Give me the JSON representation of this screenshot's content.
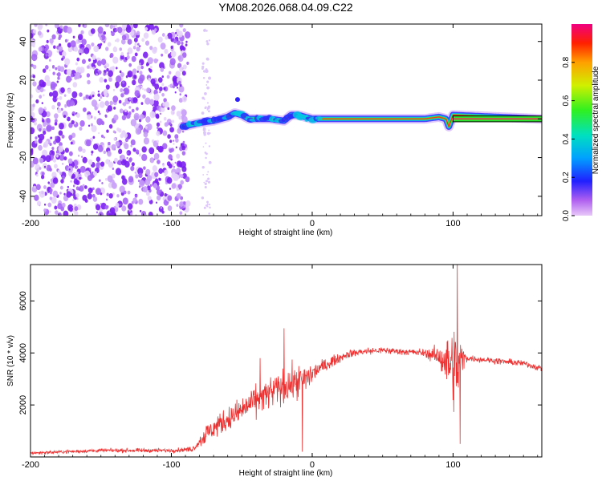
{
  "title": "YM08.2026.068.04.09.C22",
  "colors": {
    "snr_line": "#ee3030",
    "axis": "#000000",
    "noise_purple": "#7b2ff7",
    "band_outline": "#000000"
  },
  "chart_data": [
    {
      "type": "heatmap",
      "name": "spectrogram",
      "xlabel": "Height of straight line (km)",
      "ylabel": "Frequency (Hz)",
      "xlim": [
        -200,
        163
      ],
      "ylim": [
        -50,
        49
      ],
      "xticks": [
        -200,
        -100,
        0,
        100
      ],
      "xtick_labels": [
        "-200",
        "-100",
        "0",
        "100"
      ],
      "yticks": [
        -40,
        -20,
        0,
        20,
        40
      ],
      "ytick_labels": [
        "-40",
        "-20",
        "0",
        "20",
        "40"
      ],
      "colorbar": {
        "label": "Normalized spectral amplitude",
        "range": [
          0,
          1
        ],
        "ticks": [
          0.0,
          0.2,
          0.4,
          0.6,
          0.8
        ],
        "tick_labels": [
          "0.0",
          "0.2",
          "0.4",
          "0.6",
          "0.8"
        ]
      },
      "noise_region_x": [
        -200,
        -88
      ],
      "signal_track": {
        "x": [
          -92,
          -80,
          -70,
          -60,
          -55,
          -50,
          -45,
          -30,
          -20,
          -15,
          -10,
          -5,
          0,
          10,
          20,
          40,
          60,
          80,
          90,
          95,
          97,
          100,
          163
        ],
        "freq": [
          -4,
          -2,
          -1,
          1,
          3,
          2,
          0,
          0,
          -1,
          2,
          2,
          1,
          0,
          0,
          0,
          0,
          0,
          0,
          1,
          0,
          -4,
          2,
          0
        ]
      },
      "strong_band_x": [
        100,
        163
      ]
    },
    {
      "type": "line",
      "name": "snr",
      "xlabel": "Height of straight line (km)",
      "ylabel": "SNR (10 * v/v)",
      "xlim": [
        -200,
        163
      ],
      "ylim": [
        0,
        7400
      ],
      "xticks": [
        -200,
        -100,
        0,
        100
      ],
      "xtick_labels": [
        "-200",
        "-100",
        "0",
        "100"
      ],
      "yticks": [
        2000,
        4000,
        6000
      ],
      "ytick_labels": [
        "2000",
        "4000",
        "6000"
      ],
      "series": [
        {
          "name": "SNR",
          "x": [
            -200,
            -150,
            -100,
            -85,
            -75,
            -65,
            -55,
            -45,
            -35,
            -25,
            -15,
            -5,
            5,
            15,
            25,
            35,
            50,
            65,
            80,
            90,
            97,
            103,
            107,
            110,
            130,
            150,
            163
          ],
          "values": [
            150,
            250,
            250,
            300,
            900,
            1300,
            1600,
            2000,
            2300,
            2600,
            2800,
            3000,
            3400,
            3700,
            3950,
            4050,
            4100,
            4050,
            4000,
            3850,
            3600,
            3300,
            3800,
            3800,
            3700,
            3600,
            3400
          ],
          "noise_amp": [
            60,
            70,
            80,
            100,
            400,
            450,
            500,
            550,
            600,
            650,
            650,
            600,
            300,
            200,
            150,
            150,
            130,
            130,
            150,
            400,
            1200,
            1800,
            500,
            120,
            120,
            120,
            120
          ],
          "spikes": [
            {
              "x": -65,
              "y": 1500
            },
            {
              "x": -37,
              "y": 3800
            },
            {
              "x": -20,
              "y": 4950
            },
            {
              "x": -7,
              "y": 200
            },
            {
              "x": 103,
              "y": 7400
            },
            {
              "x": 105,
              "y": 500
            }
          ]
        }
      ]
    }
  ]
}
